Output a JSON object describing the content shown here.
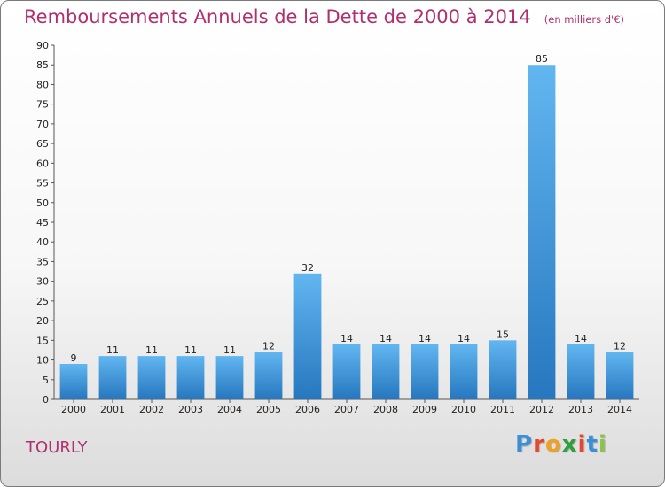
{
  "title": "Remboursements Annuels de la Dette de 2000 à 2014",
  "subtitle": "(en milliers d'€)",
  "location": "TOURLY",
  "logo": {
    "letters": [
      "P",
      "r",
      "o",
      "x",
      "i",
      "t",
      "i"
    ],
    "colors": [
      "#3a8fd8",
      "#e8462a",
      "#f0a022",
      "#2e9e3e",
      "#e8462a",
      "#3a8fd8",
      "#8bc34a"
    ]
  },
  "colors": {
    "title": "#b0306e",
    "bar_light": "#62b6f0",
    "bar_dark": "#2677bf"
  },
  "chart_data": {
    "type": "bar",
    "title": "Remboursements Annuels de la Dette de 2000 à 2014",
    "subtitle": "(en milliers d'€)",
    "categories": [
      "2000",
      "2001",
      "2002",
      "2003",
      "2004",
      "2005",
      "2006",
      "2007",
      "2008",
      "2009",
      "2010",
      "2011",
      "2012",
      "2013",
      "2014"
    ],
    "values": [
      9,
      11,
      11,
      11,
      11,
      12,
      32,
      14,
      14,
      14,
      14,
      15,
      85,
      14,
      12
    ],
    "ylim": [
      0,
      90
    ],
    "yticks": [
      0,
      5,
      10,
      15,
      20,
      25,
      30,
      35,
      40,
      45,
      50,
      55,
      60,
      65,
      70,
      75,
      80,
      85,
      90
    ],
    "grid": false,
    "legend": "none"
  }
}
